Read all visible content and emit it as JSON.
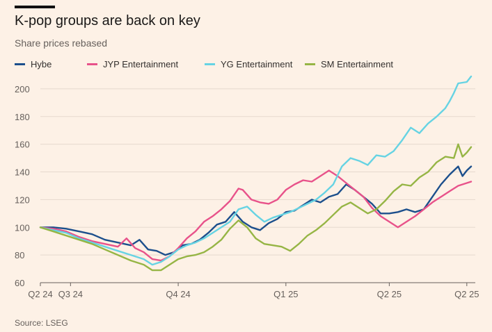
{
  "title": "K-pop groups are back on key",
  "subtitle": "Share prices rebased",
  "source": "Source: LSEG",
  "chart_data": {
    "type": "line",
    "ylim": [
      60,
      210
    ],
    "yticks": [
      60,
      80,
      100,
      120,
      140,
      160,
      180,
      200
    ],
    "xlim": [
      0,
      100
    ],
    "xticks": [
      {
        "label": "Q2 24",
        "x": 0
      },
      {
        "label": "Q3 24",
        "x": 7
      },
      {
        "label": "Q4 24",
        "x": 32
      },
      {
        "label": "Q1 25",
        "x": 57
      },
      {
        "label": "Q2 25",
        "x": 81
      },
      {
        "label": "Q2 25",
        "x": 99
      }
    ],
    "grid": true,
    "legend_position": "top-left",
    "series": [
      {
        "name": "Hybe",
        "color": "#1c4f8c",
        "points": [
          [
            0,
            100
          ],
          [
            3,
            100
          ],
          [
            6,
            99
          ],
          [
            9,
            97
          ],
          [
            12,
            95
          ],
          [
            15,
            91
          ],
          [
            18,
            89
          ],
          [
            21,
            87
          ],
          [
            23,
            91
          ],
          [
            25,
            84
          ],
          [
            27,
            83
          ],
          [
            29,
            80
          ],
          [
            31,
            82
          ],
          [
            33,
            87
          ],
          [
            35,
            88
          ],
          [
            37,
            91
          ],
          [
            39,
            96
          ],
          [
            41,
            102
          ],
          [
            43,
            104
          ],
          [
            45,
            111
          ],
          [
            47,
            104
          ],
          [
            49,
            100
          ],
          [
            51,
            98
          ],
          [
            53,
            103
          ],
          [
            55,
            106
          ],
          [
            57,
            111
          ],
          [
            59,
            112
          ],
          [
            61,
            116
          ],
          [
            63,
            120
          ],
          [
            65,
            118
          ],
          [
            67,
            122
          ],
          [
            69,
            124
          ],
          [
            71,
            131
          ],
          [
            73,
            127
          ],
          [
            75,
            122
          ],
          [
            77,
            117
          ],
          [
            79,
            110
          ],
          [
            81,
            110
          ],
          [
            83,
            111
          ],
          [
            85,
            113
          ],
          [
            87,
            111
          ],
          [
            89,
            113
          ],
          [
            91,
            122
          ],
          [
            93,
            131
          ],
          [
            95,
            138
          ],
          [
            96,
            141
          ],
          [
            97,
            144
          ],
          [
            98,
            137
          ],
          [
            99,
            141
          ],
          [
            100,
            144
          ]
        ]
      },
      {
        "name": "JYP Entertainment",
        "color": "#e8528a",
        "points": [
          [
            0,
            100
          ],
          [
            3,
            99
          ],
          [
            6,
            97
          ],
          [
            9,
            93
          ],
          [
            12,
            90
          ],
          [
            15,
            88
          ],
          [
            18,
            86
          ],
          [
            20,
            92
          ],
          [
            22,
            85
          ],
          [
            24,
            82
          ],
          [
            26,
            77
          ],
          [
            28,
            76
          ],
          [
            30,
            79
          ],
          [
            32,
            85
          ],
          [
            34,
            92
          ],
          [
            36,
            97
          ],
          [
            38,
            104
          ],
          [
            40,
            108
          ],
          [
            42,
            113
          ],
          [
            44,
            119
          ],
          [
            46,
            128
          ],
          [
            47,
            127
          ],
          [
            49,
            120
          ],
          [
            51,
            118
          ],
          [
            53,
            117
          ],
          [
            55,
            120
          ],
          [
            57,
            127
          ],
          [
            59,
            131
          ],
          [
            61,
            134
          ],
          [
            63,
            133
          ],
          [
            65,
            137
          ],
          [
            67,
            141
          ],
          [
            69,
            137
          ],
          [
            71,
            132
          ],
          [
            73,
            127
          ],
          [
            75,
            122
          ],
          [
            77,
            114
          ],
          [
            79,
            108
          ],
          [
            81,
            104
          ],
          [
            83,
            100
          ],
          [
            85,
            104
          ],
          [
            87,
            108
          ],
          [
            89,
            113
          ],
          [
            91,
            118
          ],
          [
            93,
            122
          ],
          [
            95,
            126
          ],
          [
            97,
            130
          ],
          [
            99,
            132
          ],
          [
            100,
            133
          ]
        ]
      },
      {
        "name": "YG Entertainment",
        "color": "#66d3e3",
        "points": [
          [
            0,
            100
          ],
          [
            3,
            98
          ],
          [
            6,
            96
          ],
          [
            9,
            92
          ],
          [
            12,
            89
          ],
          [
            15,
            86
          ],
          [
            18,
            83
          ],
          [
            21,
            80
          ],
          [
            24,
            77
          ],
          [
            26,
            73
          ],
          [
            28,
            75
          ],
          [
            30,
            79
          ],
          [
            32,
            84
          ],
          [
            34,
            87
          ],
          [
            36,
            89
          ],
          [
            38,
            92
          ],
          [
            40,
            96
          ],
          [
            42,
            100
          ],
          [
            44,
            104
          ],
          [
            46,
            113
          ],
          [
            48,
            115
          ],
          [
            50,
            109
          ],
          [
            52,
            104
          ],
          [
            54,
            107
          ],
          [
            56,
            109
          ],
          [
            58,
            111
          ],
          [
            60,
            114
          ],
          [
            62,
            117
          ],
          [
            64,
            120
          ],
          [
            66,
            125
          ],
          [
            68,
            131
          ],
          [
            70,
            144
          ],
          [
            72,
            150
          ],
          [
            74,
            148
          ],
          [
            76,
            145
          ],
          [
            78,
            152
          ],
          [
            80,
            151
          ],
          [
            82,
            155
          ],
          [
            84,
            163
          ],
          [
            86,
            172
          ],
          [
            88,
            168
          ],
          [
            90,
            175
          ],
          [
            92,
            180
          ],
          [
            94,
            186
          ],
          [
            95,
            191
          ],
          [
            96,
            197
          ],
          [
            97,
            204
          ],
          [
            99,
            205
          ],
          [
            100,
            209
          ]
        ]
      },
      {
        "name": "SM Entertainment",
        "color": "#96b545",
        "points": [
          [
            0,
            100
          ],
          [
            3,
            97
          ],
          [
            6,
            94
          ],
          [
            9,
            91
          ],
          [
            12,
            88
          ],
          [
            15,
            84
          ],
          [
            18,
            80
          ],
          [
            21,
            76
          ],
          [
            24,
            73
          ],
          [
            26,
            69
          ],
          [
            28,
            69
          ],
          [
            30,
            73
          ],
          [
            32,
            77
          ],
          [
            34,
            79
          ],
          [
            36,
            80
          ],
          [
            38,
            82
          ],
          [
            40,
            86
          ],
          [
            42,
            91
          ],
          [
            44,
            99
          ],
          [
            46,
            105
          ],
          [
            48,
            100
          ],
          [
            50,
            92
          ],
          [
            52,
            88
          ],
          [
            54,
            87
          ],
          [
            56,
            86
          ],
          [
            58,
            83
          ],
          [
            60,
            88
          ],
          [
            62,
            94
          ],
          [
            64,
            98
          ],
          [
            66,
            103
          ],
          [
            68,
            109
          ],
          [
            70,
            115
          ],
          [
            72,
            118
          ],
          [
            74,
            114
          ],
          [
            76,
            110
          ],
          [
            78,
            113
          ],
          [
            80,
            119
          ],
          [
            82,
            126
          ],
          [
            84,
            131
          ],
          [
            86,
            130
          ],
          [
            88,
            136
          ],
          [
            90,
            140
          ],
          [
            92,
            147
          ],
          [
            94,
            151
          ],
          [
            96,
            150
          ],
          [
            97,
            160
          ],
          [
            98,
            151
          ],
          [
            99,
            154
          ],
          [
            100,
            158
          ]
        ]
      }
    ]
  }
}
